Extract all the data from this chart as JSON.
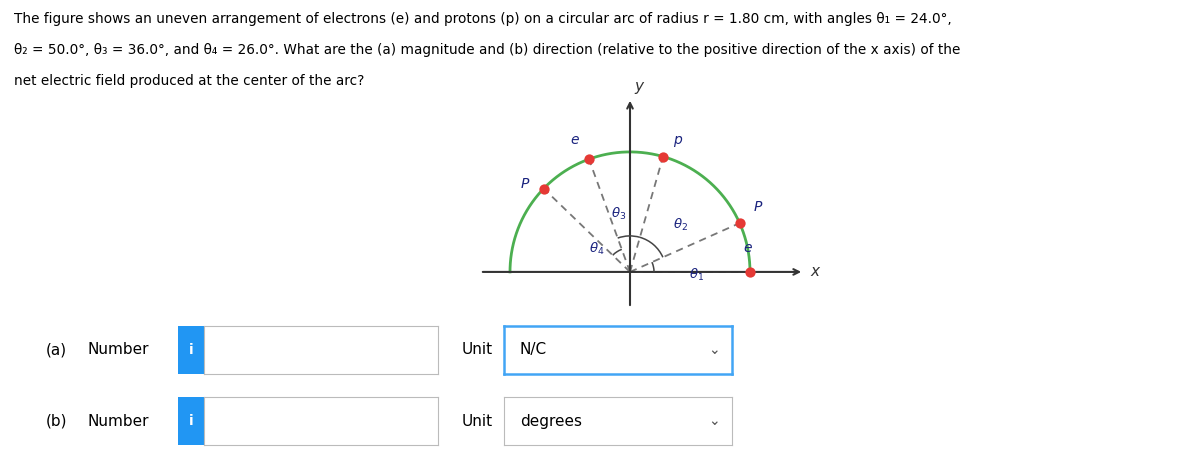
{
  "background_color": "#ffffff",
  "arc_color": "#4caf50",
  "particle_color": "#e53935",
  "axis_color": "#333333",
  "dashed_color": "#777777",
  "text_color": "#1a237e",
  "theta1": 24.0,
  "theta2": 50.0,
  "theta3": 36.0,
  "theta4": 26.0,
  "fig_width": 12.0,
  "fig_height": 4.76,
  "unit_a": "N/C",
  "unit_b": "degrees",
  "blue_color": "#2196f3",
  "title_line1": "The figure shows an uneven arrangement of electrons (e) and protons (p) on a circular arc of radius r = 1.80 cm, with angles θ₁ = 24.0°,",
  "title_line2": "θ₂ = 50.0°, θ₃ = 36.0°, and θ₄ = 26.0°. What are the (a) magnitude and (b) direction (relative to the positive direction of the x axis) of the",
  "title_line3": "net electric field produced at the center of the arc?"
}
